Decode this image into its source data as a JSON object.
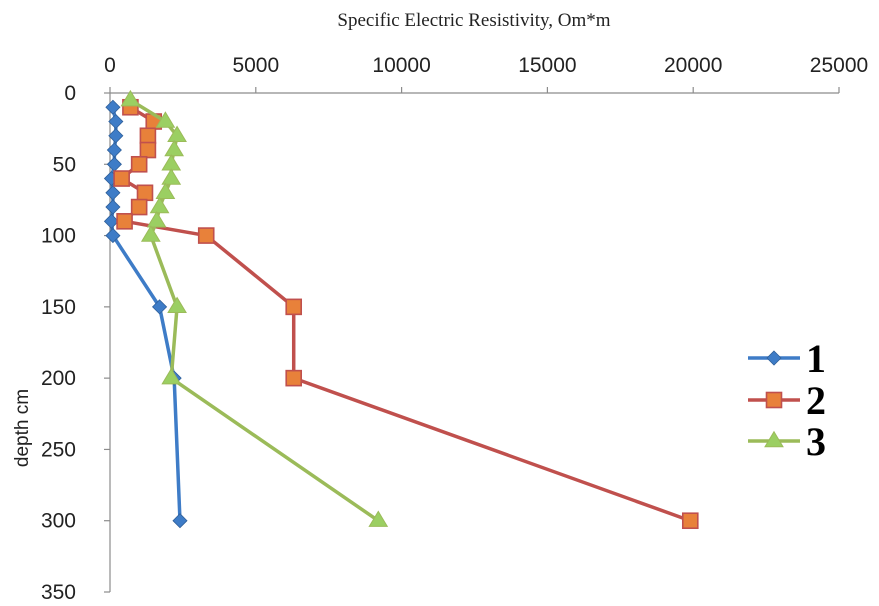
{
  "chart_data": {
    "type": "line",
    "title": "",
    "xlabel": "Specific Electric Resistivity, Om*m",
    "ylabel": "depth cm",
    "x_axis_position": "top",
    "y_axis_inverted": true,
    "xlim": [
      0,
      25000
    ],
    "ylim": [
      0,
      350
    ],
    "x_ticks": [
      0,
      5000,
      10000,
      15000,
      20000,
      25000
    ],
    "y_ticks": [
      0,
      50,
      100,
      150,
      200,
      250,
      300,
      350
    ],
    "grid": false,
    "legend_position": "right",
    "series": [
      {
        "name": "1",
        "color": "#3E7CC7",
        "marker": "diamond",
        "points": [
          {
            "x": 100,
            "y": 10
          },
          {
            "x": 200,
            "y": 20
          },
          {
            "x": 200,
            "y": 30
          },
          {
            "x": 150,
            "y": 40
          },
          {
            "x": 150,
            "y": 50
          },
          {
            "x": 50,
            "y": 60
          },
          {
            "x": 100,
            "y": 70
          },
          {
            "x": 100,
            "y": 80
          },
          {
            "x": 50,
            "y": 90
          },
          {
            "x": 100,
            "y": 100
          },
          {
            "x": 1700,
            "y": 150
          },
          {
            "x": 2200,
            "y": 200
          },
          {
            "x": 2400,
            "y": 300
          }
        ]
      },
      {
        "name": "2",
        "color": "#C0504D",
        "marker_fill": "#E8813A",
        "marker": "square",
        "points": [
          {
            "x": 700,
            "y": 10
          },
          {
            "x": 1500,
            "y": 20
          },
          {
            "x": 1300,
            "y": 30
          },
          {
            "x": 1300,
            "y": 40
          },
          {
            "x": 1000,
            "y": 50
          },
          {
            "x": 400,
            "y": 60
          },
          {
            "x": 1200,
            "y": 70
          },
          {
            "x": 1000,
            "y": 80
          },
          {
            "x": 500,
            "y": 90
          },
          {
            "x": 3300,
            "y": 100
          },
          {
            "x": 6300,
            "y": 150
          },
          {
            "x": 6300,
            "y": 200
          },
          {
            "x": 19900,
            "y": 300
          }
        ]
      },
      {
        "name": "3",
        "color": "#9BBB59",
        "marker_fill": "#9BCF62",
        "marker": "triangle",
        "points": [
          {
            "x": 700,
            "y": 5
          },
          {
            "x": 1900,
            "y": 20
          },
          {
            "x": 2300,
            "y": 30
          },
          {
            "x": 2200,
            "y": 40
          },
          {
            "x": 2100,
            "y": 50
          },
          {
            "x": 2100,
            "y": 60
          },
          {
            "x": 1900,
            "y": 70
          },
          {
            "x": 1700,
            "y": 80
          },
          {
            "x": 1600,
            "y": 90
          },
          {
            "x": 1400,
            "y": 100
          },
          {
            "x": 2300,
            "y": 150
          },
          {
            "x": 2100,
            "y": 200
          },
          {
            "x": 9200,
            "y": 300
          }
        ]
      }
    ]
  }
}
